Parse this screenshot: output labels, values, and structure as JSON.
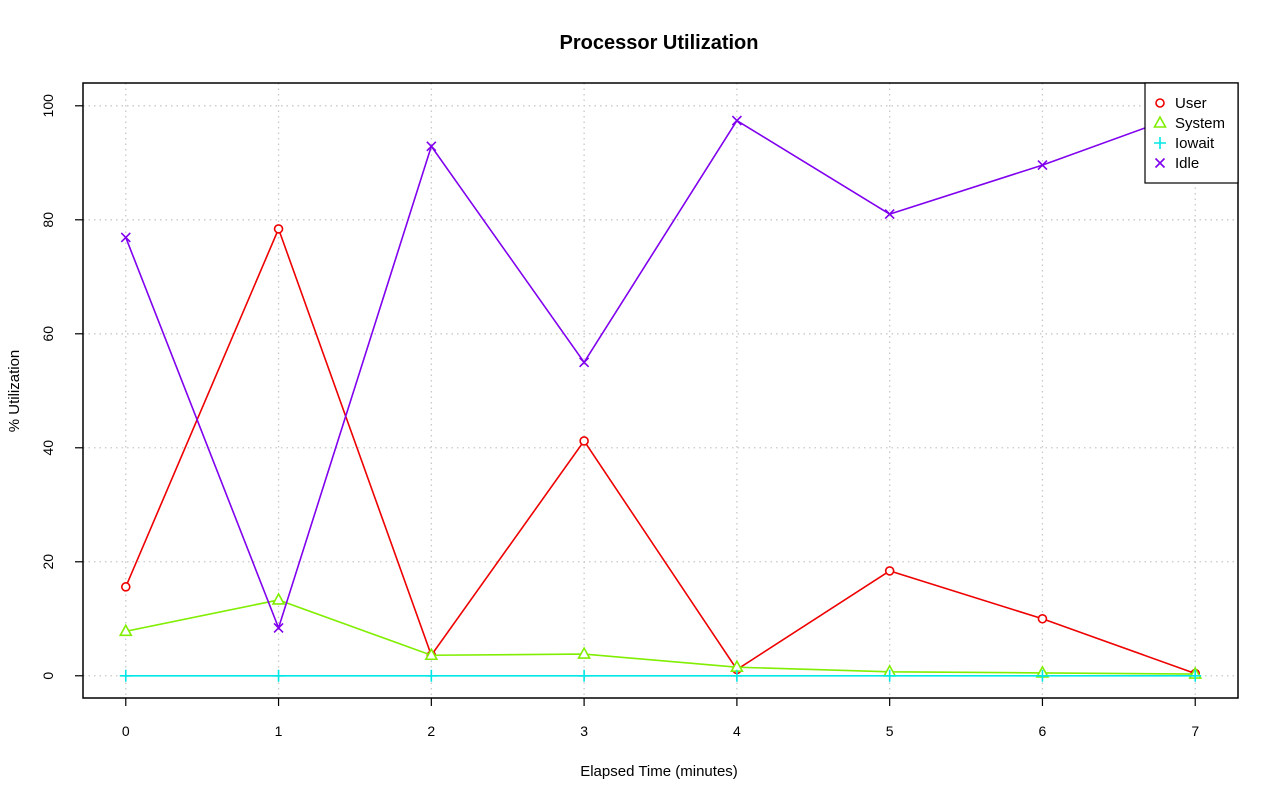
{
  "chart_data": {
    "type": "line",
    "title": "Processor Utilization",
    "xlabel": "Elapsed Time (minutes)",
    "ylabel": "% Utilization",
    "x": [
      0,
      1,
      2,
      3,
      4,
      5,
      6,
      7
    ],
    "xlim": [
      -0.28,
      7.28
    ],
    "ylim": [
      -3.9,
      104
    ],
    "x_ticks": [
      "0",
      "1",
      "2",
      "3",
      "4",
      "5",
      "6",
      "7"
    ],
    "y_ticks": [
      0,
      20,
      40,
      60,
      80,
      100
    ],
    "y_tick_labels": [
      "0",
      "20",
      "40",
      "60",
      "80",
      "100"
    ],
    "grid": true,
    "legend_position": "top-right",
    "series": [
      {
        "name": "User",
        "color": "#ee0000",
        "marker": "circle",
        "values": [
          15.6,
          78.4,
          3.6,
          41.2,
          1.1,
          18.4,
          10.0,
          0.4
        ]
      },
      {
        "name": "System",
        "color": "#80ee00",
        "marker": "triangle",
        "values": [
          7.8,
          13.3,
          3.6,
          3.8,
          1.5,
          0.7,
          0.5,
          0.3
        ]
      },
      {
        "name": "Iowait",
        "color": "#00e6e6",
        "marker": "plus",
        "values": [
          0,
          0,
          0,
          0,
          0,
          0,
          0,
          0
        ]
      },
      {
        "name": "Idle",
        "color": "#8000ee",
        "marker": "cross",
        "values": [
          76.9,
          8.4,
          92.9,
          55.0,
          97.4,
          81.0,
          89.6,
          99.3
        ]
      }
    ]
  }
}
